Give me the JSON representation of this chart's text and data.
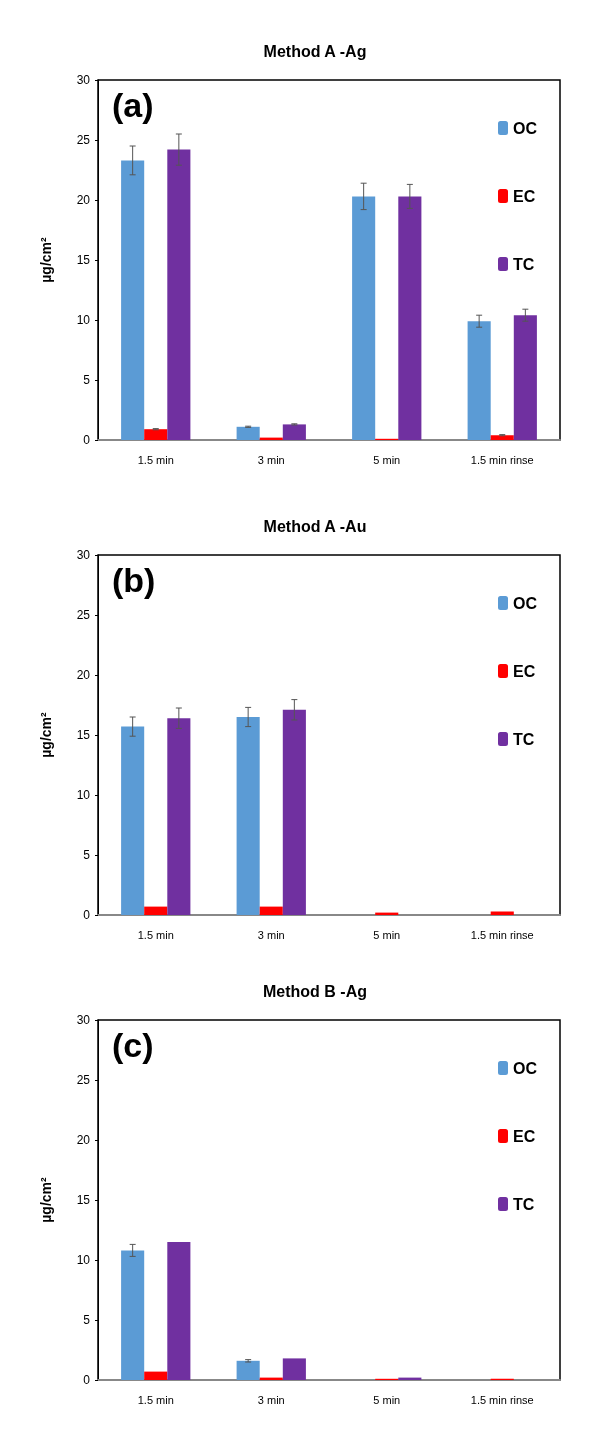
{
  "chart_data": [
    {
      "type": "bar",
      "title": "Method A -Ag",
      "ylabel": "µg/cm²",
      "annotations": [
        "(a)"
      ],
      "categories": [
        "1.5 min",
        "3 min",
        "5 min",
        "1.5 min rinse"
      ],
      "ylim": [
        0,
        30
      ],
      "yticks": [
        0,
        5,
        10,
        15,
        20,
        25,
        30
      ],
      "grid": false,
      "legend": "top right",
      "series": [
        {
          "name": "OC",
          "color": "#5b9bd5",
          "values": [
            23.3,
            1.1,
            20.3,
            9.9
          ],
          "errors": [
            1.2,
            0.05,
            1.1,
            0.5
          ]
        },
        {
          "name": "EC",
          "color": "#ff0000",
          "values": [
            0.9,
            0.2,
            0.1,
            0.4
          ],
          "errors": [
            0.05,
            null,
            null,
            0.05
          ]
        },
        {
          "name": "TC",
          "color": "#7030a0",
          "values": [
            24.2,
            1.3,
            20.3,
            10.4
          ],
          "errors": [
            1.3,
            0.05,
            1.0,
            0.5
          ]
        }
      ]
    },
    {
      "type": "bar",
      "title": "Method A -Au",
      "ylabel": "µg/cm²",
      "annotations": [
        "(b)"
      ],
      "categories": [
        "1.5 min",
        "3 min",
        "5 min",
        "1.5 min rinse"
      ],
      "ylim": [
        0,
        30
      ],
      "yticks": [
        0,
        5,
        10,
        15,
        20,
        25,
        30
      ],
      "grid": false,
      "legend": "top right",
      "series": [
        {
          "name": "OC",
          "color": "#5b9bd5",
          "values": [
            15.7,
            16.5,
            null,
            null
          ],
          "errors": [
            0.8,
            0.8,
            null,
            null
          ]
        },
        {
          "name": "EC",
          "color": "#ff0000",
          "values": [
            0.7,
            0.7,
            0.2,
            0.3
          ],
          "errors": [
            null,
            null,
            null,
            null
          ]
        },
        {
          "name": "TC",
          "color": "#7030a0",
          "values": [
            16.4,
            17.1,
            null,
            null
          ],
          "errors": [
            0.85,
            0.85,
            null,
            null
          ]
        }
      ]
    },
    {
      "type": "bar",
      "title": "Method B -Ag",
      "ylabel": "µg/cm²",
      "annotations": [
        "(c)"
      ],
      "categories": [
        "1.5 min",
        "3 min",
        "5 min",
        "1.5 min rinse"
      ],
      "ylim": [
        0,
        30
      ],
      "yticks": [
        0,
        5,
        10,
        15,
        20,
        25,
        30
      ],
      "grid": false,
      "legend": "top right",
      "series": [
        {
          "name": "OC",
          "color": "#5b9bd5",
          "values": [
            10.8,
            1.6,
            null,
            null
          ],
          "errors": [
            0.5,
            0.1,
            null,
            null
          ]
        },
        {
          "name": "EC",
          "color": "#ff0000",
          "values": [
            0.7,
            0.2,
            0.1,
            0.1
          ],
          "errors": [
            null,
            null,
            null,
            null
          ]
        },
        {
          "name": "TC",
          "color": "#7030a0",
          "values": [
            11.5,
            1.8,
            0.2,
            null
          ],
          "errors": [
            null,
            null,
            null,
            null
          ]
        }
      ]
    }
  ]
}
